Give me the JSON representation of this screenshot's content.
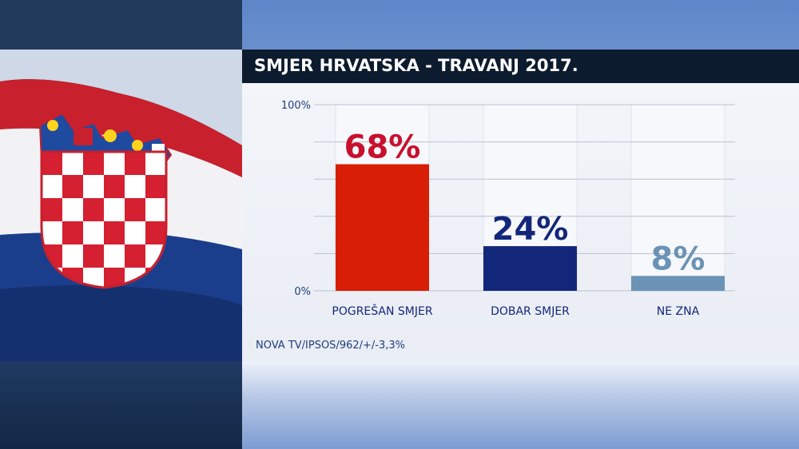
{
  "header": {
    "title": "SMJER HRVATSKA - TRAVANJ 2017."
  },
  "footer": {
    "source": "NOVA TV/IPSOS/962/+/-3,3%"
  },
  "chart_data": {
    "type": "bar",
    "title": "SMJER HRVATSKA - TRAVANJ 2017.",
    "categories": [
      "POGREŠAN SMJER",
      "DOBAR SMJER",
      "NE ZNA"
    ],
    "values": [
      68,
      24,
      8
    ],
    "value_labels": [
      "68%",
      "24%",
      "8%"
    ],
    "bar_colors": [
      "#d81e05",
      "#13277a",
      "#6a93b5"
    ],
    "label_colors": [
      "#c8102e",
      "#13277a",
      "#6a93b5"
    ],
    "ylim": [
      0,
      100
    ],
    "y_tick_labels": [
      "100%",
      "0%"
    ],
    "grid": true,
    "xlabel": "",
    "ylabel": ""
  }
}
